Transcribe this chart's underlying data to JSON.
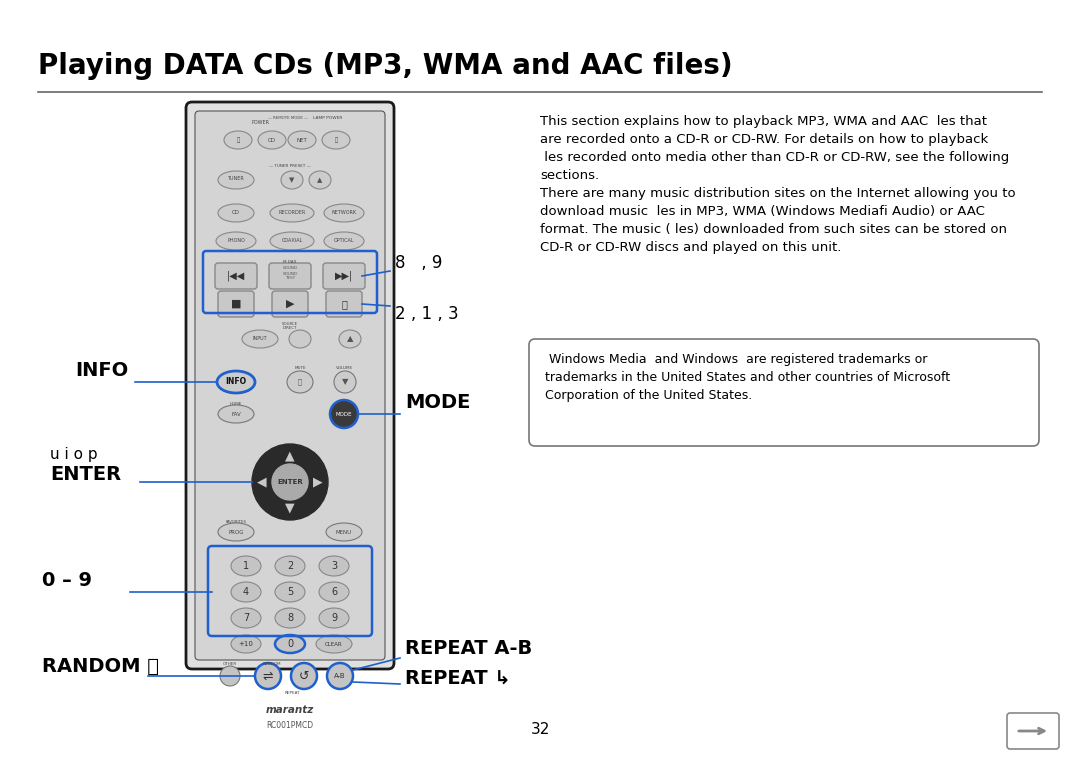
{
  "title": "Playing DATA CDs (MP3, WMA and AAC files)",
  "bg_color": "#ffffff",
  "title_fontsize": 20,
  "body_text_1": "This section explains how to playback MP3, WMA and AAC  les that\nare recorded onto a CD-R or CD-RW. For details on how to playback\n les recorded onto media other than CD-R or CD-RW, see the following\nsections.\nThere are many music distribution sites on the Internet allowing you to\ndownload music  les in MP3, WMA (Windows Mediafi Audio) or AAC\nformat. The music ( les) downloaded from such sites can be stored on\nCD-R or CD-RW discs and played on this unit.",
  "box_text": " Windows Media  and Windows  are registered trademarks or\ntrademarks in the United States and other countries of Microsoft\nCorporation of the United States.",
  "label_8_9": "8   , 9",
  "label_2_1_3": "2 , 1 , 3",
  "label_info": "INFO",
  "label_mode": "MODE",
  "label_uiop": "u i o p",
  "label_enter": "ENTER",
  "label_0_9": "0 – 9",
  "label_random": "RANDOM",
  "label_random_sym": "⤵",
  "label_repeat_ab": "REPEAT A-B",
  "label_repeat": "REPEAT ↳",
  "page_number": "32"
}
